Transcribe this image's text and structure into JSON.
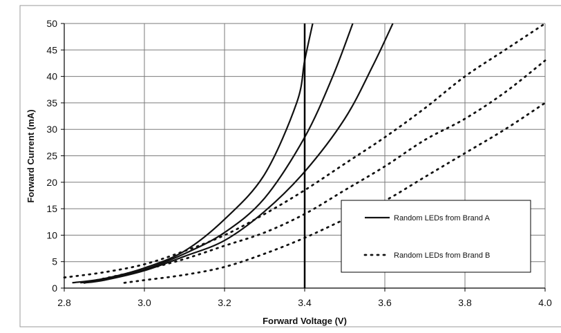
{
  "chart_data": {
    "type": "line",
    "title": "",
    "xlabel": "Forward Voltage (V)",
    "ylabel": "Forward Current (mA)",
    "xlim": [
      2.8,
      4.0
    ],
    "ylim": [
      0,
      50
    ],
    "x_ticks": [
      "2.8",
      "3.0",
      "3.2",
      "3.4",
      "3.6",
      "3.8",
      "4.0"
    ],
    "y_ticks": [
      "0",
      "5",
      "10",
      "15",
      "20",
      "25",
      "30",
      "35",
      "40",
      "45",
      "50"
    ],
    "grid": true,
    "legend_position": "right",
    "legend": [
      {
        "label": "Random LEDs from Brand A",
        "style": "solid"
      },
      {
        "label": "Random LEDs from Brand B",
        "style": "dotted"
      }
    ],
    "reference_line": {
      "x": 3.4
    },
    "series": [
      {
        "group": "Brand A",
        "style": "solid",
        "points": [
          [
            2.82,
            1.0
          ],
          [
            2.9,
            1.8
          ],
          [
            3.0,
            3.8
          ],
          [
            3.1,
            7.0
          ],
          [
            3.2,
            13.0
          ],
          [
            3.3,
            21.5
          ],
          [
            3.38,
            35.0
          ],
          [
            3.4,
            43.0
          ],
          [
            3.42,
            50.0
          ]
        ]
      },
      {
        "group": "Brand A",
        "style": "solid",
        "points": [
          [
            2.84,
            1.0
          ],
          [
            2.9,
            1.6
          ],
          [
            3.0,
            3.5
          ],
          [
            3.1,
            6.5
          ],
          [
            3.2,
            10.5
          ],
          [
            3.3,
            17.0
          ],
          [
            3.4,
            28.5
          ],
          [
            3.47,
            40.0
          ],
          [
            3.52,
            50.0
          ]
        ]
      },
      {
        "group": "Brand A",
        "style": "solid",
        "points": [
          [
            2.85,
            1.0
          ],
          [
            2.9,
            1.5
          ],
          [
            3.0,
            3.3
          ],
          [
            3.1,
            6.0
          ],
          [
            3.2,
            9.0
          ],
          [
            3.3,
            14.5
          ],
          [
            3.4,
            22.0
          ],
          [
            3.5,
            32.0
          ],
          [
            3.57,
            42.0
          ],
          [
            3.62,
            50.0
          ]
        ]
      },
      {
        "group": "Brand B",
        "style": "dotted",
        "points": [
          [
            2.8,
            2.0
          ],
          [
            2.9,
            3.0
          ],
          [
            3.0,
            4.5
          ],
          [
            3.1,
            7.0
          ],
          [
            3.2,
            10.0
          ],
          [
            3.3,
            14.0
          ],
          [
            3.4,
            18.5
          ],
          [
            3.5,
            23.5
          ],
          [
            3.6,
            28.5
          ],
          [
            3.7,
            34.0
          ],
          [
            3.8,
            40.0
          ],
          [
            3.9,
            45.0
          ],
          [
            4.0,
            50.0
          ]
        ]
      },
      {
        "group": "Brand B",
        "style": "dotted",
        "points": [
          [
            2.85,
            1.0
          ],
          [
            3.0,
            3.5
          ],
          [
            3.1,
            5.5
          ],
          [
            3.2,
            8.0
          ],
          [
            3.3,
            10.5
          ],
          [
            3.4,
            14.0
          ],
          [
            3.5,
            18.5
          ],
          [
            3.6,
            23.0
          ],
          [
            3.7,
            28.0
          ],
          [
            3.8,
            32.0
          ],
          [
            3.9,
            37.0
          ],
          [
            4.0,
            43.0
          ]
        ]
      },
      {
        "group": "Brand B",
        "style": "dotted",
        "points": [
          [
            2.95,
            1.0
          ],
          [
            3.0,
            1.5
          ],
          [
            3.1,
            2.5
          ],
          [
            3.2,
            4.0
          ],
          [
            3.3,
            6.5
          ],
          [
            3.4,
            9.5
          ],
          [
            3.5,
            13.0
          ],
          [
            3.6,
            16.5
          ],
          [
            3.7,
            21.0
          ],
          [
            3.8,
            25.5
          ],
          [
            3.9,
            30.0
          ],
          [
            4.0,
            35.0
          ]
        ]
      }
    ]
  }
}
